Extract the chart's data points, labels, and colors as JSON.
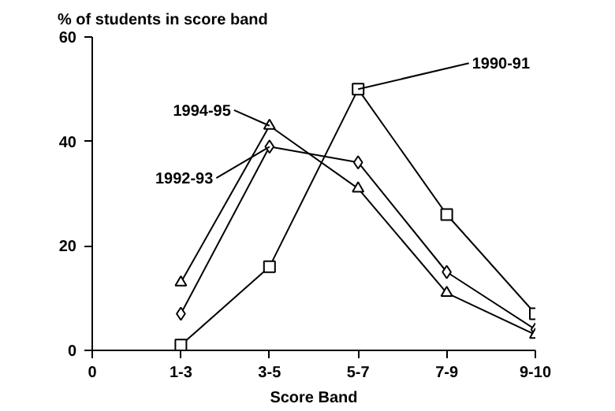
{
  "chart_data": {
    "type": "line",
    "ylabel": "% of students in score band",
    "xlabel": "Score Band",
    "categories": [
      "0",
      "1-3",
      "3-5",
      "5-7",
      "7-9",
      "9-10"
    ],
    "ylim": [
      0,
      60
    ],
    "yticks": [
      0,
      20,
      40,
      60
    ],
    "grid": false,
    "line_style": "solid",
    "series": [
      {
        "name": "1990-91",
        "color": "#000000",
        "marker": "square",
        "values": [
          null,
          1,
          16,
          50,
          26,
          7
        ]
      },
      {
        "name": "1992-93",
        "color": "#000000",
        "marker": "diamond",
        "values": [
          null,
          7,
          39,
          36,
          15,
          4
        ]
      },
      {
        "name": "1994-95",
        "color": "#000000",
        "marker": "triangle",
        "values": [
          null,
          13,
          43,
          31,
          11,
          3
        ]
      }
    ]
  }
}
